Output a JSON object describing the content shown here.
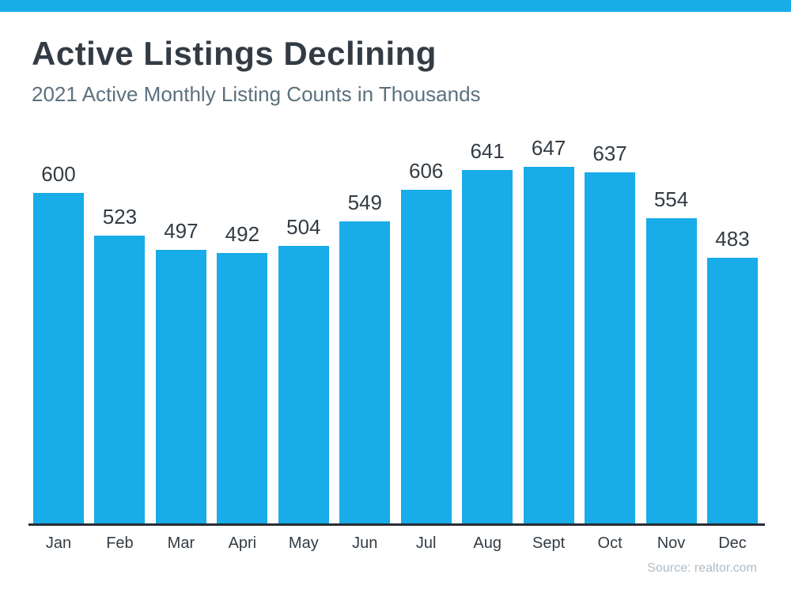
{
  "header": {
    "title": "Active Listings Declining",
    "subtitle": "2021 Active Monthly Listing Counts in Thousands"
  },
  "chart_data": {
    "type": "bar",
    "title": "Active Listings Declining",
    "subtitle": "2021 Active Monthly Listing Counts in Thousands",
    "categories": [
      "Jan",
      "Feb",
      "Mar",
      "Apri",
      "May",
      "Jun",
      "Jul",
      "Aug",
      "Sept",
      "Oct",
      "Nov",
      "Dec"
    ],
    "values": [
      600,
      523,
      497,
      492,
      504,
      549,
      606,
      641,
      647,
      637,
      554,
      483
    ],
    "xlabel": "",
    "ylabel": "",
    "ylim": [
      0,
      700
    ],
    "gridlines": false,
    "legend": false,
    "value_labels_shown": true,
    "bar_color": "#18ACE8",
    "source": "Source: realtor.com"
  },
  "footer": {
    "source": "Source: realtor.com"
  },
  "colors": {
    "accent": "#18ACE8",
    "title_text": "#333C44",
    "subtitle_text": "#5C717D",
    "axis_line": "#252D35",
    "source_text": "#AFBCC6"
  }
}
